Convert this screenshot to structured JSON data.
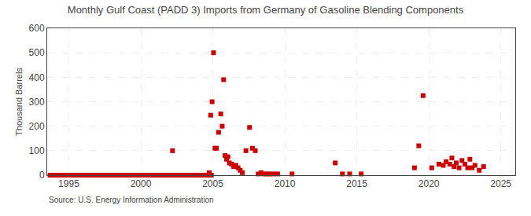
{
  "chart_data": {
    "type": "scatter",
    "title": "Monthly Gulf Coast (PADD 3) Imports from Germany of Gasoline Blending Components",
    "ylabel": "Thousand Barrels",
    "annotations": [
      "Source: U.S. Energy Information Administration"
    ],
    "color": "#cc0000",
    "marker": "square",
    "grid": true,
    "xlim": [
      1993.5,
      2026
    ],
    "ylim": [
      0,
      600
    ],
    "xticks": [
      1995,
      2000,
      2005,
      2010,
      2015,
      2020,
      2025
    ],
    "yticks": [
      0,
      100,
      200,
      300,
      400,
      500,
      600
    ],
    "x": [
      1993.7,
      1993.9,
      1994.1,
      1994.3,
      1994.5,
      1994.7,
      1994.9,
      1995.1,
      1995.3,
      1995.5,
      1995.7,
      1995.9,
      1996.1,
      1996.3,
      1996.5,
      1996.7,
      1996.9,
      1997.1,
      1997.3,
      1997.5,
      1997.7,
      1997.9,
      1998.1,
      1998.3,
      1998.5,
      1998.7,
      1998.9,
      1999.1,
      1999.3,
      1999.5,
      1999.7,
      1999.9,
      2000.1,
      2000.3,
      2000.5,
      2000.7,
      2000.9,
      2001.1,
      2001.3,
      2001.5,
      2001.7,
      2001.9,
      2002.1,
      2002.3,
      2002.5,
      2002.7,
      2002.9,
      2003.1,
      2003.3,
      2003.5,
      2003.7,
      2003.9,
      2004.1,
      2004.3,
      2004.5,
      2004.7,
      2004.9,
      2002.2,
      2004.75,
      2004.85,
      2004.95,
      2005.05,
      2005.15,
      2005.25,
      2005.4,
      2005.55,
      2005.65,
      2005.75,
      2005.85,
      2005.95,
      2006.05,
      2006.15,
      2006.3,
      2006.45,
      2006.6,
      2006.75,
      2006.9,
      2007.05,
      2007.3,
      2007.55,
      2007.75,
      2007.95,
      2008.15,
      2008.35,
      2008.55,
      2008.75,
      2008.95,
      2009.2,
      2009.5,
      2010.5,
      2013.5,
      2014.0,
      2014.5,
      2015.3,
      2019.0,
      2019.3,
      2019.6,
      2020.2,
      2020.7,
      2021.0,
      2021.2,
      2021.45,
      2021.6,
      2021.75,
      2021.9,
      2022.1,
      2022.3,
      2022.5,
      2022.7,
      2022.85,
      2023.0,
      2023.2,
      2023.5,
      2023.8
    ],
    "values": [
      0,
      0,
      0,
      0,
      0,
      0,
      0,
      0,
      0,
      0,
      0,
      0,
      0,
      0,
      0,
      0,
      0,
      0,
      0,
      0,
      0,
      0,
      0,
      0,
      0,
      0,
      0,
      0,
      0,
      0,
      0,
      0,
      0,
      0,
      0,
      0,
      0,
      0,
      0,
      0,
      0,
      0,
      0,
      0,
      0,
      0,
      0,
      0,
      0,
      0,
      0,
      0,
      0,
      0,
      0,
      0,
      0,
      100,
      10,
      245,
      300,
      500,
      110,
      110,
      175,
      250,
      200,
      390,
      80,
      65,
      75,
      50,
      45,
      35,
      40,
      30,
      20,
      10,
      100,
      195,
      110,
      100,
      5,
      10,
      5,
      5,
      5,
      5,
      5,
      5,
      50,
      5,
      5,
      5,
      30,
      120,
      325,
      30,
      45,
      40,
      55,
      45,
      70,
      35,
      50,
      30,
      60,
      45,
      30,
      65,
      30,
      40,
      20,
      35
    ]
  }
}
